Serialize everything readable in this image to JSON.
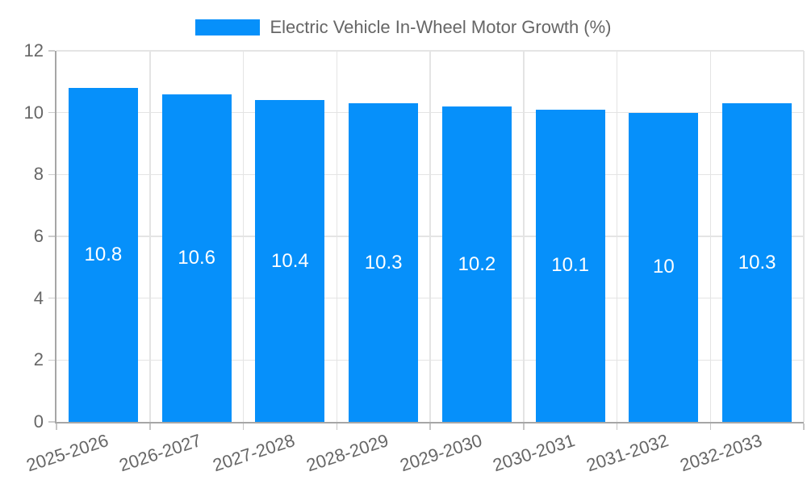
{
  "chart_data": {
    "type": "bar",
    "title": "",
    "legend": {
      "label": "Electric Vehicle In-Wheel Motor Growth (%)",
      "position": "top"
    },
    "categories": [
      "2025-2026",
      "2026-2027",
      "2027-2028",
      "2028-2029",
      "2029-2030",
      "2030-2031",
      "2031-2032",
      "2032-2033"
    ],
    "values": [
      10.8,
      10.6,
      10.4,
      10.3,
      10.2,
      10.1,
      10,
      10.3
    ],
    "xlabel": "",
    "ylabel": "",
    "ylim": [
      0,
      12
    ],
    "yticks": [
      0,
      2,
      4,
      6,
      8,
      10,
      12
    ],
    "grid": true,
    "colors": {
      "bar": "#0690FA",
      "bar_value_label": "#ffffff",
      "axis_text": "#666666",
      "grid_line": "#e4e4e4",
      "axis_line": "#a6a6a6",
      "tick_mark": "#c6c6c6",
      "background": "#ffffff"
    }
  }
}
